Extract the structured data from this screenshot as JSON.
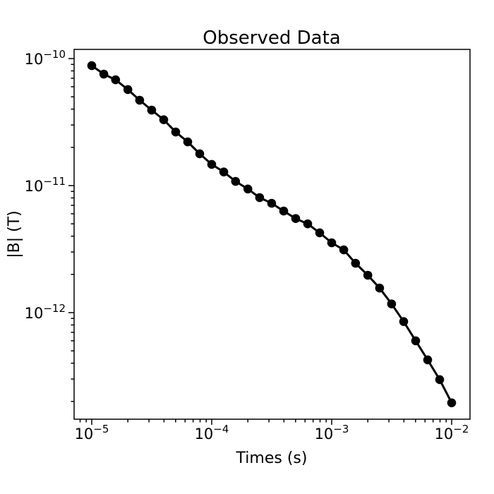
{
  "chart_data": {
    "type": "line",
    "title": "Observed Data",
    "xlabel": "Times (s)",
    "ylabel": "|B| (T)",
    "xscale": "log",
    "yscale": "log",
    "xlim": [
      7.1e-06,
      0.0141
    ],
    "ylim": [
      1.47e-13,
      1.18e-10
    ],
    "grid": false,
    "legend": "none",
    "line_color": "#000000",
    "marker": "o",
    "marker_color": "#000000",
    "x_major_tick_exponents": [
      -5,
      -4,
      -3,
      -2
    ],
    "y_major_tick_exponents": [
      -10,
      -11,
      -12
    ],
    "tick_base": "10",
    "x": [
      1e-05,
      1.26e-05,
      1.58e-05,
      2e-05,
      2.51e-05,
      3.16e-05,
      3.98e-05,
      5.01e-05,
      6.31e-05,
      7.94e-05,
      0.0001,
      0.000126,
      0.000158,
      0.0002,
      0.000251,
      0.000316,
      0.000398,
      0.000501,
      0.000631,
      0.000794,
      0.001,
      0.00126,
      0.00158,
      0.002,
      0.00251,
      0.00316,
      0.00398,
      0.00501,
      0.00631,
      0.00794,
      0.01
    ],
    "y": [
      8.8e-11,
      7.55e-11,
      6.8e-11,
      5.7e-11,
      4.7e-11,
      3.93e-11,
      3.3e-11,
      2.64e-11,
      2.21e-11,
      1.78e-11,
      1.47e-11,
      1.28e-11,
      1.08e-11,
      9.4e-12,
      8.05e-12,
      7.26e-12,
      6.3e-12,
      5.5e-12,
      5e-12,
      4.25e-12,
      3.55e-12,
      3.12e-12,
      2.45e-12,
      1.97e-12,
      1.56e-12,
      1.17e-12,
      8.5e-13,
      6e-13,
      4.25e-13,
      2.97e-13,
      1.95e-13
    ]
  }
}
